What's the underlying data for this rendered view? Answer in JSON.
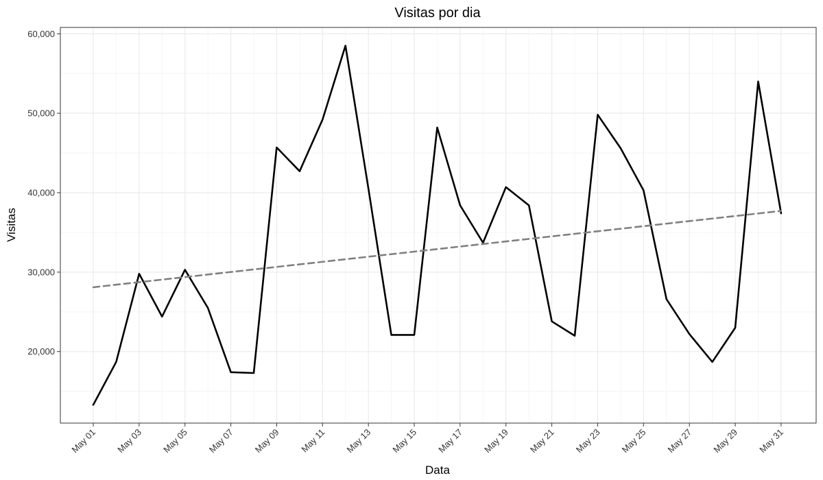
{
  "chart_data": {
    "type": "line",
    "title": "Visitas por dia",
    "xlabel": "Data",
    "ylabel": "Visitas",
    "x": [
      "May 01",
      "May 02",
      "May 03",
      "May 04",
      "May 05",
      "May 06",
      "May 07",
      "May 08",
      "May 09",
      "May 10",
      "May 11",
      "May 12",
      "May 13",
      "May 14",
      "May 15",
      "May 16",
      "May 17",
      "May 18",
      "May 19",
      "May 20",
      "May 21",
      "May 22",
      "May 23",
      "May 24",
      "May 25",
      "May 26",
      "May 27",
      "May 28",
      "May 29",
      "May 30",
      "May 31"
    ],
    "x_tick_labels": [
      "May 01",
      "May 03",
      "May 05",
      "May 07",
      "May 09",
      "May 11",
      "May 13",
      "May 15",
      "May 17",
      "May 19",
      "May 21",
      "May 23",
      "May 25",
      "May 27",
      "May 29",
      "May 31"
    ],
    "y_ticks": [
      20000,
      30000,
      40000,
      50000,
      60000
    ],
    "y_tick_labels": [
      "20,000",
      "30,000",
      "40,000",
      "50,000",
      "60,000"
    ],
    "ylim": [
      11000,
      60800
    ],
    "series": [
      {
        "values": [
          13300,
          18700,
          29800,
          24400,
          30300,
          25500,
          17400,
          17300,
          45700,
          42700,
          49200,
          58500,
          40500,
          22100,
          22100,
          48200,
          38400,
          33700,
          40700,
          38400,
          23800,
          22000,
          49800,
          45600,
          40300,
          26600,
          22200,
          18700,
          23000,
          54000,
          37400
        ],
        "color": "#000000",
        "style": "solid"
      },
      {
        "x": [
          "May 01",
          "May 31"
        ],
        "values": [
          28100,
          37700
        ],
        "color": "#808080",
        "style": "dashed"
      }
    ],
    "grid": true,
    "panel_border_color": "#333333",
    "grid_major_color": "#ebebeb",
    "grid_minor_color": "#f5f5f5"
  }
}
